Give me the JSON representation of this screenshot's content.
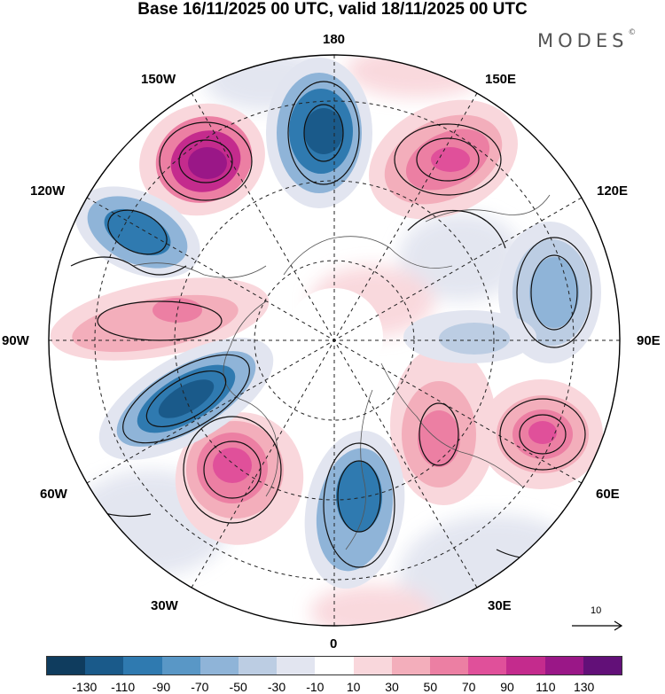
{
  "title": "Base 16/11/2025 00 UTC, valid 18/11/2025 00 UTC",
  "brand": "MODES",
  "brand_mark": "©",
  "longitude_labels": {
    "lon_180": "180",
    "lon_150w": "150W",
    "lon_150e": "150E",
    "lon_120w": "120W",
    "lon_120e": "120E",
    "lon_90w": "90W",
    "lon_90e": "90E",
    "lon_60w": "60W",
    "lon_60e": "60E",
    "lon_30w": "30W",
    "lon_30e": "30E",
    "lon_0": "0"
  },
  "vector_reference": "10",
  "colorbar": {
    "colors": [
      "#0f3c5e",
      "#1a5a8a",
      "#2f7ab0",
      "#5997c6",
      "#8fb4d8",
      "#bccde3",
      "#e2e5f0",
      "#ffffff",
      "#f9d7dc",
      "#f3aebb",
      "#ec7fa3",
      "#e0509a",
      "#c42b8d",
      "#9a1787",
      "#621078"
    ],
    "tick_labels": [
      "-130",
      "-110",
      "-90",
      "-70",
      "-50",
      "-30",
      "-10",
      "10",
      "30",
      "50",
      "70",
      "90",
      "110",
      "130"
    ]
  }
}
